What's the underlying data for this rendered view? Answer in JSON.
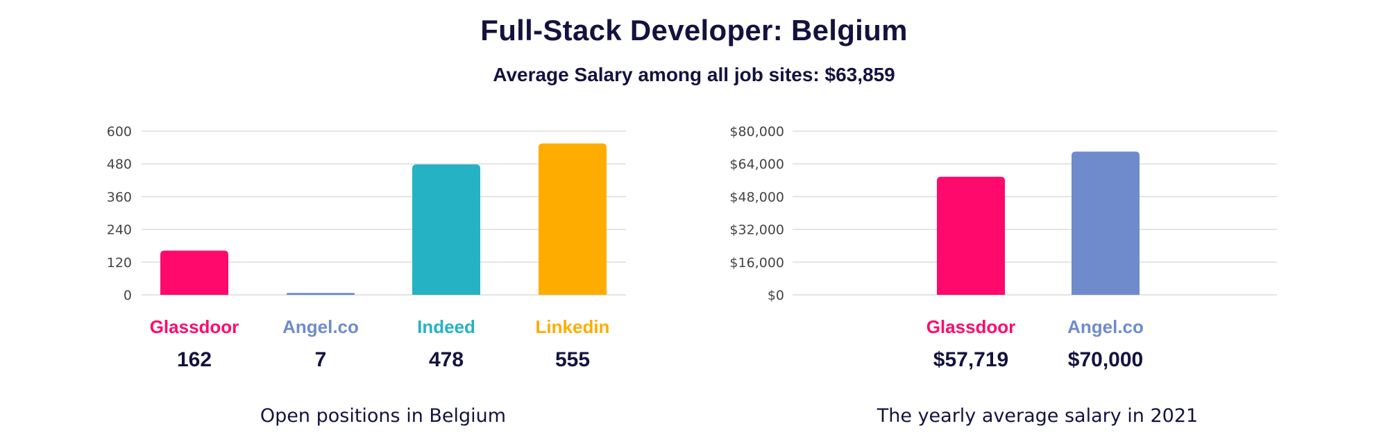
{
  "header": {
    "title": "Full-Stack Developer: Belgium",
    "subtitle": "Average Salary among all job sites: $63,859"
  },
  "chart_data": [
    {
      "type": "bar",
      "title": "",
      "caption": "Open positions in Belgium",
      "xlabel": "",
      "ylabel": "",
      "ylim": [
        0,
        600
      ],
      "yticks": [
        0,
        120,
        240,
        360,
        480,
        600
      ],
      "ytick_labels": [
        "0",
        "120",
        "240",
        "360",
        "480",
        "600"
      ],
      "grid": true,
      "categories": [
        "Glassdoor",
        "Angel.co",
        "Indeed",
        "Linkedin"
      ],
      "values": [
        162,
        7,
        478,
        555
      ],
      "value_labels": [
        "162",
        "7",
        "478",
        "555"
      ],
      "colors": [
        "#ff0a6c",
        "#6f8bcc",
        "#25b2c5",
        "#ffac00"
      ]
    },
    {
      "type": "bar",
      "title": "",
      "caption": "The yearly average salary in 2021",
      "xlabel": "",
      "ylabel": "",
      "ylim": [
        0,
        80000
      ],
      "yticks": [
        0,
        16000,
        32000,
        48000,
        64000,
        80000
      ],
      "ytick_labels": [
        "$0",
        "$16,000",
        "$32,000",
        "$48,000",
        "$64,000",
        "$80,000"
      ],
      "grid": true,
      "categories": [
        "Glassdoor",
        "Angel.co"
      ],
      "values": [
        57719,
        70000
      ],
      "value_labels": [
        "$57,719",
        "$70,000"
      ],
      "colors": [
        "#ff0a6c",
        "#6f8bcc"
      ]
    }
  ]
}
